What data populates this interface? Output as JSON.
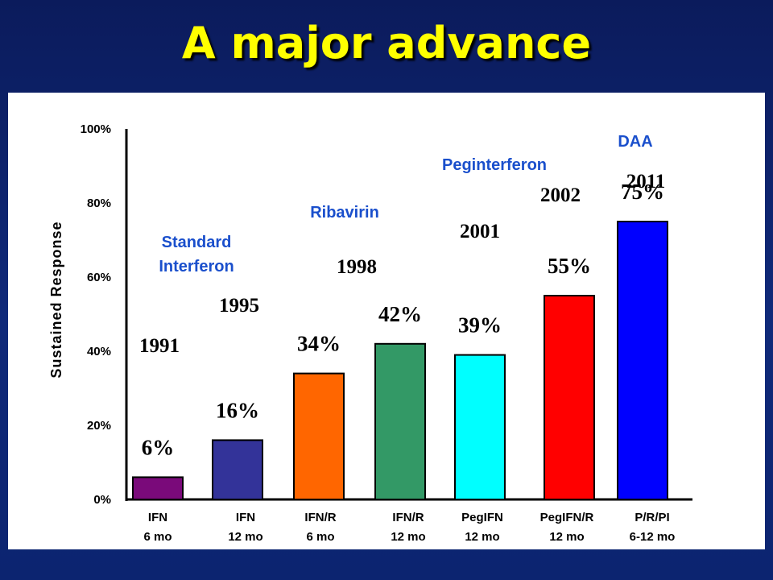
{
  "title": "A major advance",
  "chart_data": {
    "type": "bar",
    "title": "",
    "ylabel": "Sustained Response",
    "ylim": [
      0,
      100
    ],
    "yticks": [
      "0%",
      "20%",
      "40%",
      "60%",
      "80%",
      "100%"
    ],
    "categories": [
      {
        "line1": "IFN",
        "line2": "6 mo"
      },
      {
        "line1": "IFN",
        "line2": "12 mo"
      },
      {
        "line1": "IFN/R",
        "line2": "6 mo"
      },
      {
        "line1": "IFN/R",
        "line2": "12 mo"
      },
      {
        "line1": "PegIFN",
        "line2": "12 mo"
      },
      {
        "line1": "PegIFN/R",
        "line2": "12 mo"
      },
      {
        "line1": "P/R/PI",
        "line2": "6-12 mo"
      }
    ],
    "values": [
      6,
      16,
      34,
      42,
      39,
      55,
      75
    ],
    "data_labels": [
      "6%",
      "16%",
      "34%",
      "42%",
      "39%",
      "55%",
      "75%"
    ],
    "colors": [
      "#7a0a7a",
      "#333399",
      "#ff6600",
      "#339966",
      "#00ffff",
      "#ff0000",
      "#0000ff"
    ],
    "year_labels": [
      {
        "text": "1991",
        "bar": 0
      },
      {
        "text": "1995",
        "bar": 1
      },
      {
        "text": "1998",
        "bar": 3
      },
      {
        "text": "2001",
        "bar": 4
      },
      {
        "text": "2002",
        "bar": 5
      },
      {
        "text": "2011",
        "bar": 6
      }
    ],
    "era_labels": [
      {
        "lines": [
          "Standard",
          "Interferon"
        ]
      },
      {
        "lines": [
          "Ribavirin"
        ]
      },
      {
        "lines": [
          "Peginterferon"
        ]
      },
      {
        "lines": [
          "DAA"
        ]
      }
    ],
    "grid": false,
    "legend": "none"
  }
}
